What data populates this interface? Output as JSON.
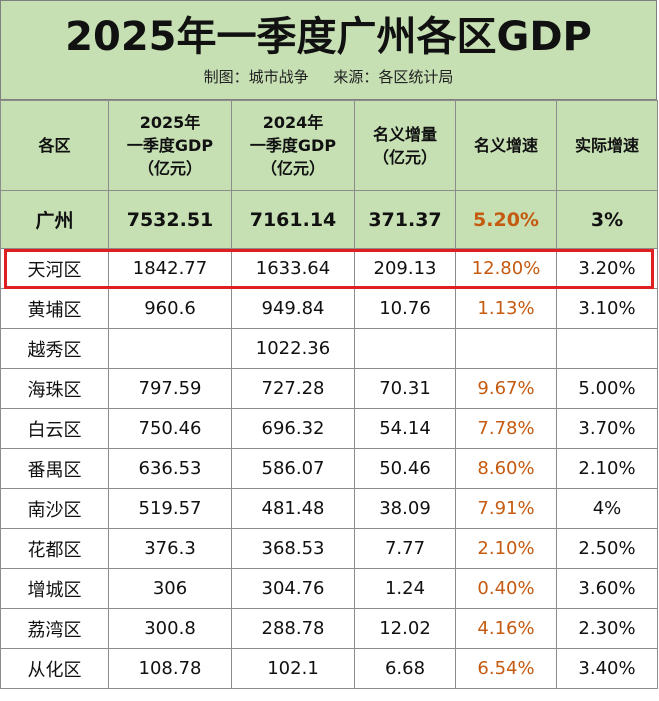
{
  "title": "2025年一季度广州各区GDP",
  "credit": {
    "author": "制图：城市战争",
    "source": "来源：各区统计局"
  },
  "table": {
    "headers": [
      "各区",
      "2025年\n一季度GDP\n（亿元）",
      "2024年\n一季度GDP\n（亿元）",
      "名义增量\n（亿元）",
      "名义增速",
      "实际增速"
    ],
    "total": [
      "广州",
      "7532.51",
      "7161.14",
      "371.37",
      "5.20%",
      "3%"
    ],
    "rows": [
      [
        "天河区",
        "1842.77",
        "1633.64",
        "209.13",
        "12.80%",
        "3.20%"
      ],
      [
        "黄埔区",
        "960.6",
        "949.84",
        "10.76",
        "1.13%",
        "3.10%"
      ],
      [
        "越秀区",
        "",
        "1022.36",
        "",
        "",
        ""
      ],
      [
        "海珠区",
        "797.59",
        "727.28",
        "70.31",
        "9.67%",
        "5.00%"
      ],
      [
        "白云区",
        "750.46",
        "696.32",
        "54.14",
        "7.78%",
        "3.70%"
      ],
      [
        "番禺区",
        "636.53",
        "586.07",
        "50.46",
        "8.60%",
        "2.10%"
      ],
      [
        "南沙区",
        "519.57",
        "481.48",
        "38.09",
        "7.91%",
        "4%"
      ],
      [
        "花都区",
        "376.3",
        "368.53",
        "7.77",
        "2.10%",
        "2.50%"
      ],
      [
        "增城区",
        "306",
        "304.76",
        "1.24",
        "0.40%",
        "3.60%"
      ],
      [
        "荔湾区",
        "300.8",
        "288.78",
        "12.02",
        "4.16%",
        "2.30%"
      ],
      [
        "从化区",
        "108.78",
        "102.1",
        "6.68",
        "6.54%",
        "3.40%"
      ]
    ],
    "highlighted_row": "天河区"
  },
  "colors": {
    "header_bg": "#c6e0b4",
    "nominal_growth_text": "#c55a11",
    "highlight_border": "#e02020"
  }
}
